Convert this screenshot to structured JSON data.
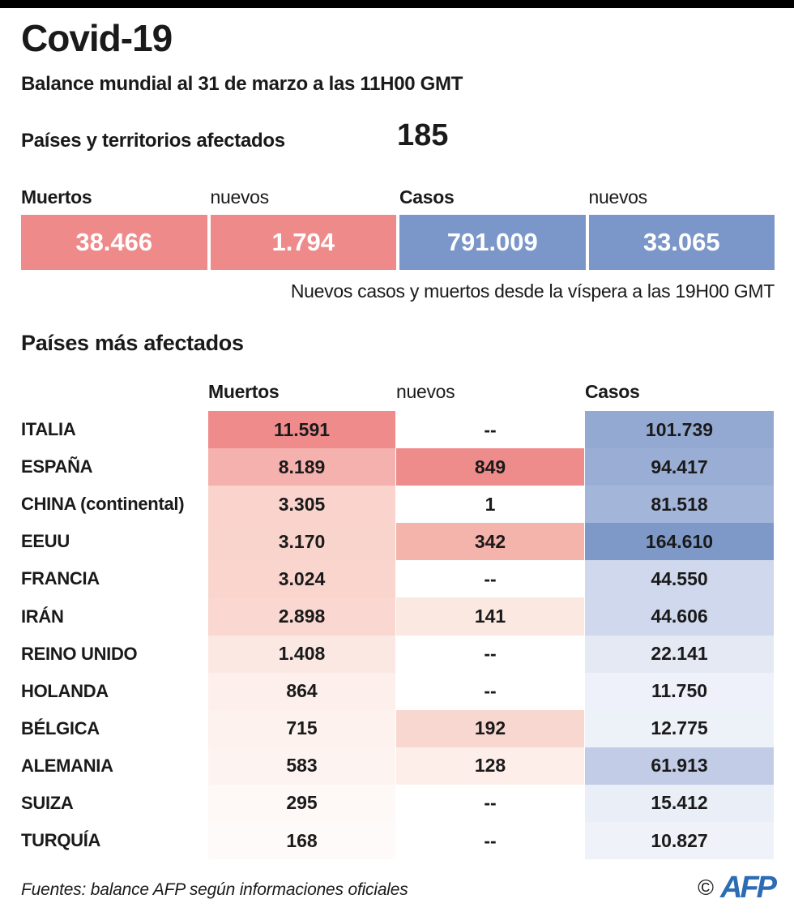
{
  "header": {
    "title": "Covid-19",
    "subtitle": "Balance mundial al 31 de marzo a las 11H00 GMT",
    "affected_label": "Países y territorios afectados",
    "affected_value": "185"
  },
  "summary": {
    "columns": [
      {
        "label": "Muertos",
        "value": "38.466",
        "color": "#ef8a8a"
      },
      {
        "label": "nuevos",
        "value": "1.794",
        "color": "#ef8a8a"
      },
      {
        "label": "Casos",
        "value": "791.009",
        "color": "#7b96c8"
      },
      {
        "label": "nuevos",
        "value": "33.065",
        "color": "#7b96c8"
      }
    ],
    "note": "Nuevos casos y muertos desde la víspera a las 19H00 GMT"
  },
  "table": {
    "title": "Países más afectados",
    "headers": {
      "muertos": "Muertos",
      "nuevos": "nuevos",
      "casos": "Casos"
    },
    "rows": [
      {
        "country": "ITALIA",
        "muertos": {
          "value": "11.591",
          "color": "#ef8b8b"
        },
        "nuevos": {
          "value": "--",
          "color": "#ffffff"
        },
        "casos": {
          "value": "101.739",
          "color": "#93a9d2"
        }
      },
      {
        "country": "ESPAÑA",
        "muertos": {
          "value": "8.189",
          "color": "#f5b1ad"
        },
        "nuevos": {
          "value": "849",
          "color": "#ee8c8b"
        },
        "casos": {
          "value": "94.417",
          "color": "#9aaed5"
        }
      },
      {
        "country": "CHINA (continental)",
        "muertos": {
          "value": "3.305",
          "color": "#f9d3cc"
        },
        "nuevos": {
          "value": "1",
          "color": "#ffffff"
        },
        "casos": {
          "value": "81.518",
          "color": "#a3b6da"
        }
      },
      {
        "country": "EEUU",
        "muertos": {
          "value": "3.170",
          "color": "#f9d4cd"
        },
        "nuevos": {
          "value": "342",
          "color": "#f4b3ab"
        },
        "casos": {
          "value": "164.610",
          "color": "#7e99c8"
        }
      },
      {
        "country": "FRANCIA",
        "muertos": {
          "value": "3.024",
          "color": "#f9d5ce"
        },
        "nuevos": {
          "value": "--",
          "color": "#ffffff"
        },
        "casos": {
          "value": "44.550",
          "color": "#cfd8ec"
        }
      },
      {
        "country": "IRÁN",
        "muertos": {
          "value": "2.898",
          "color": "#fad7d0"
        },
        "nuevos": {
          "value": "141",
          "color": "#fbe9e1"
        },
        "casos": {
          "value": "44.606",
          "color": "#cfd8ec"
        }
      },
      {
        "country": "REINO UNIDO",
        "muertos": {
          "value": "1.408",
          "color": "#fbe8e2"
        },
        "nuevos": {
          "value": "--",
          "color": "#ffffff"
        },
        "casos": {
          "value": "22.141",
          "color": "#e4e9f4"
        }
      },
      {
        "country": "HOLANDA",
        "muertos": {
          "value": "864",
          "color": "#fdf0ec"
        },
        "nuevos": {
          "value": "--",
          "color": "#ffffff"
        },
        "casos": {
          "value": "11.750",
          "color": "#eef1f9"
        }
      },
      {
        "country": "BÉLGICA",
        "muertos": {
          "value": "715",
          "color": "#fdf2ee"
        },
        "nuevos": {
          "value": "192",
          "color": "#f9d7d1"
        },
        "casos": {
          "value": "12.775",
          "color": "#edf1f8"
        }
      },
      {
        "country": "ALEMANIA",
        "muertos": {
          "value": "583",
          "color": "#fdf4f1"
        },
        "nuevos": {
          "value": "128",
          "color": "#fdeeea"
        },
        "casos": {
          "value": "61.913",
          "color": "#c2cce6"
        }
      },
      {
        "country": "SUIZA",
        "muertos": {
          "value": "295",
          "color": "#fef8f6"
        },
        "nuevos": {
          "value": "--",
          "color": "#ffffff"
        },
        "casos": {
          "value": "15.412",
          "color": "#eaeef6"
        }
      },
      {
        "country": "TURQUÍA",
        "muertos": {
          "value": "168",
          "color": "#fefaf9"
        },
        "nuevos": {
          "value": "--",
          "color": "#ffffff"
        },
        "casos": {
          "value": "10.827",
          "color": "#eff2f9"
        }
      }
    ]
  },
  "footer": {
    "source": "Fuentes: balance AFP según informaciones oficiales",
    "copyright": "©",
    "logo": "AFP",
    "logo_color": "#2b6cb5"
  },
  "chart_data": {
    "type": "table",
    "title": "Países más afectados",
    "columns": [
      "País",
      "Muertos",
      "nuevos",
      "Casos"
    ],
    "rows": [
      [
        "ITALIA",
        11591,
        null,
        101739
      ],
      [
        "ESPAÑA",
        8189,
        849,
        94417
      ],
      [
        "CHINA (continental)",
        3305,
        1,
        81518
      ],
      [
        "EEUU",
        3170,
        342,
        164610
      ],
      [
        "FRANCIA",
        3024,
        null,
        44550
      ],
      [
        "IRÁN",
        2898,
        141,
        44606
      ],
      [
        "REINO UNIDO",
        1408,
        null,
        22141
      ],
      [
        "HOLANDA",
        864,
        null,
        11750
      ],
      [
        "BÉLGICA",
        715,
        192,
        12775
      ],
      [
        "ALEMANIA",
        583,
        128,
        61913
      ],
      [
        "SUIZA",
        295,
        null,
        15412
      ],
      [
        "TURQUÍA",
        168,
        null,
        10827
      ]
    ],
    "summary": {
      "paises_y_territorios_afectados": 185,
      "muertos": 38466,
      "muertos_nuevos": 1794,
      "casos": 791009,
      "casos_nuevos": 33065
    },
    "note": "Nuevos casos y muertos desde la víspera a las 19H00 GMT",
    "accent_red": "#ef8a8a",
    "accent_blue": "#7b96c8"
  }
}
